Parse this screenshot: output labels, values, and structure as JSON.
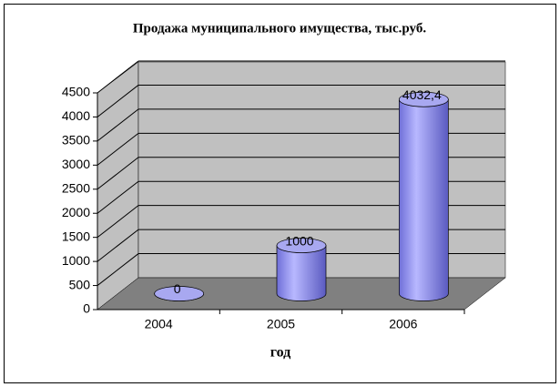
{
  "chart_data": {
    "type": "bar",
    "title": "Продажа муниципального имущества, тыс.руб.",
    "x_label": "год",
    "categories": [
      "2004",
      "2005",
      "2006"
    ],
    "values": [
      0,
      1000,
      4032.4
    ],
    "value_labels": [
      "0",
      "1000",
      "4032,4"
    ],
    "color": "#9999ff",
    "ylim": [
      0,
      4500
    ],
    "yticks": [
      0,
      500,
      1000,
      1500,
      2000,
      2500,
      3000,
      3500,
      4000,
      4500
    ],
    "grid": true
  }
}
